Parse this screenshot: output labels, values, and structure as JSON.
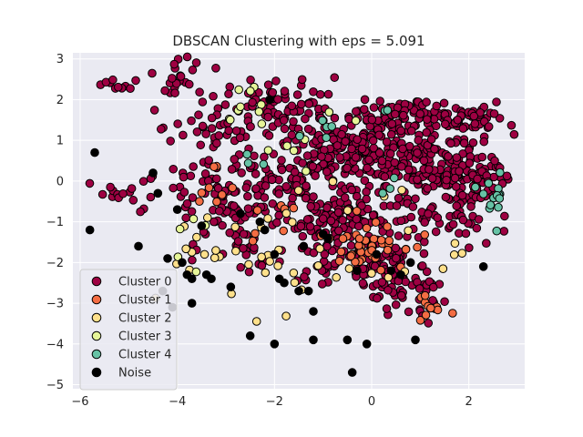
{
  "chart_data": {
    "type": "scatter",
    "title": "DBSCAN Clustering with eps = 5.091",
    "xlabel": "",
    "ylabel": "",
    "xlim": [
      -6.15,
      3.15
    ],
    "ylim": [
      -5.1,
      3.15
    ],
    "x_ticks": [
      -6,
      -4,
      -2,
      0,
      2
    ],
    "y_ticks": [
      -5,
      -4,
      -3,
      -2,
      -1,
      0,
      1,
      2,
      3
    ],
    "x_tick_labels": [
      "−6",
      "−4",
      "−2",
      "0",
      "2"
    ],
    "y_tick_labels": [
      "−5",
      "−4",
      "−3",
      "−2",
      "−1",
      "0",
      "1",
      "2",
      "3"
    ],
    "grid": true,
    "legend_position": "lower-left",
    "colors": {
      "background": "#eaeaf2",
      "grid": "#ffffff",
      "marker_edge": "#000000",
      "Cluster 0": "#9e0142",
      "Cluster 1": "#f46d43",
      "Cluster 2": "#fee08b",
      "Cluster 3": "#e6f598",
      "Cluster 4": "#66c2a5",
      "Noise": "#000000"
    },
    "series": [
      {
        "name": "Cluster 0",
        "color": "#9e0142",
        "clusters": [
          {
            "cx": 0.9,
            "cy": 1.6,
            "sx": 0.6,
            "sy": 0.25,
            "n": 90
          },
          {
            "cx": 1.9,
            "cy": 1.45,
            "sx": 0.4,
            "sy": 0.15,
            "n": 40
          },
          {
            "cx": 0.6,
            "cy": 0.5,
            "sx": 0.7,
            "sy": 0.45,
            "n": 140
          },
          {
            "cx": 1.7,
            "cy": 0.2,
            "sx": 0.5,
            "sy": 0.4,
            "n": 90
          },
          {
            "cx": 2.3,
            "cy": -0.1,
            "sx": 0.25,
            "sy": 0.3,
            "n": 30
          },
          {
            "cx": -0.6,
            "cy": 0.9,
            "sx": 0.6,
            "sy": 0.45,
            "n": 110
          },
          {
            "cx": -1.7,
            "cy": 1.8,
            "sx": 0.7,
            "sy": 0.35,
            "n": 70
          },
          {
            "cx": -1.9,
            "cy": 0.1,
            "sx": 0.8,
            "sy": 0.6,
            "n": 110
          },
          {
            "cx": -3.1,
            "cy": -0.5,
            "sx": 0.6,
            "sy": 0.45,
            "n": 60
          },
          {
            "cx": -3.3,
            "cy": 1.4,
            "sx": 0.5,
            "sy": 0.6,
            "n": 40
          },
          {
            "cx": -4.0,
            "cy": 2.5,
            "sx": 0.2,
            "sy": 0.2,
            "n": 18
          },
          {
            "cx": -5.3,
            "cy": 2.45,
            "sx": 0.2,
            "sy": 0.1,
            "n": 10
          },
          {
            "cx": -5.1,
            "cy": -0.2,
            "sx": 0.35,
            "sy": 0.2,
            "n": 14
          },
          {
            "cx": -0.6,
            "cy": -1.0,
            "sx": 0.6,
            "sy": 0.4,
            "n": 110
          },
          {
            "cx": 0.2,
            "cy": -2.0,
            "sx": 0.4,
            "sy": 0.3,
            "n": 70
          },
          {
            "cx": 0.7,
            "cy": -2.8,
            "sx": 0.5,
            "sy": 0.35,
            "n": 45
          },
          {
            "cx": 1.6,
            "cy": -1.0,
            "sx": 0.5,
            "sy": 0.35,
            "n": 40
          },
          {
            "cx": -1.1,
            "cy": -2.0,
            "sx": 0.3,
            "sy": 0.3,
            "n": 25
          },
          {
            "cx": -2.6,
            "cy": -1.6,
            "sx": 0.4,
            "sy": 0.3,
            "n": 25
          }
        ]
      },
      {
        "name": "Cluster 1",
        "color": "#f46d43",
        "clusters": [
          {
            "cx": -0.1,
            "cy": -1.5,
            "sx": 0.4,
            "sy": 0.3,
            "n": 40
          },
          {
            "cx": 1.1,
            "cy": -3.1,
            "sx": 0.25,
            "sy": 0.15,
            "n": 10
          },
          {
            "cx": -2.0,
            "cy": -1.0,
            "sx": 0.3,
            "sy": 0.2,
            "n": 8
          },
          {
            "cx": -3.2,
            "cy": -0.2,
            "sx": 0.3,
            "sy": 0.3,
            "n": 8
          }
        ]
      },
      {
        "name": "Cluster 2",
        "color": "#fee08b",
        "clusters": [
          {
            "cx": -1.5,
            "cy": -1.9,
            "sx": 0.9,
            "sy": 0.8,
            "n": 30
          },
          {
            "cx": -3.4,
            "cy": -1.5,
            "sx": 0.5,
            "sy": 0.8,
            "n": 12
          },
          {
            "cx": 1.4,
            "cy": -1.8,
            "sx": 0.4,
            "sy": 0.3,
            "n": 6
          }
        ]
      },
      {
        "name": "Cluster 3",
        "color": "#e6f598",
        "clusters": [
          {
            "cx": -2.5,
            "cy": 1.8,
            "sx": 0.3,
            "sy": 0.3,
            "n": 10
          },
          {
            "cx": -1.5,
            "cy": 0.8,
            "sx": 0.5,
            "sy": 0.5,
            "n": 8
          },
          {
            "cx": -3.6,
            "cy": -1.3,
            "sx": 0.3,
            "sy": 0.4,
            "n": 5
          }
        ]
      },
      {
        "name": "Cluster 4",
        "color": "#66c2a5",
        "clusters": [
          {
            "cx": 2.5,
            "cy": -0.4,
            "sx": 0.15,
            "sy": 0.35,
            "n": 14
          },
          {
            "cx": -1.0,
            "cy": 1.4,
            "sx": 0.2,
            "sy": 0.15,
            "n": 5
          },
          {
            "cx": 0.3,
            "cy": 1.7,
            "sx": 0.1,
            "sy": 0.1,
            "n": 2
          },
          {
            "cx": -2.4,
            "cy": 0.5,
            "sx": 0.3,
            "sy": 0.1,
            "n": 3
          },
          {
            "cx": 0.3,
            "cy": -0.2,
            "sx": 0.2,
            "sy": 0.1,
            "n": 3
          }
        ]
      },
      {
        "name": "Noise",
        "color": "#000000",
        "points": [
          [
            -5.7,
            0.7
          ],
          [
            -5.8,
            -1.2
          ],
          [
            -4.8,
            -1.6
          ],
          [
            -4.5,
            0.2
          ],
          [
            -4.4,
            -0.3
          ],
          [
            -4.2,
            -1.9
          ],
          [
            -4.0,
            -0.7
          ],
          [
            -3.9,
            -2.0
          ],
          [
            -3.8,
            -2.3
          ],
          [
            -3.7,
            -2.4
          ],
          [
            -3.7,
            -3.0
          ],
          [
            -3.5,
            -1.1
          ],
          [
            -3.4,
            -2.3
          ],
          [
            -3.3,
            -2.4
          ],
          [
            -2.9,
            -2.6
          ],
          [
            -2.7,
            -0.8
          ],
          [
            -2.5,
            -3.8
          ],
          [
            -2.3,
            -1.0
          ],
          [
            -2.2,
            -1.2
          ],
          [
            -2.1,
            2.0
          ],
          [
            -2.0,
            -1.8
          ],
          [
            -1.9,
            -2.4
          ],
          [
            -1.8,
            -2.5
          ],
          [
            -1.5,
            -2.7
          ],
          [
            -1.4,
            -1.6
          ],
          [
            -1.3,
            -2.7
          ],
          [
            -1.2,
            -3.2
          ],
          [
            -1.0,
            -1.3
          ],
          [
            -0.9,
            -1.4
          ],
          [
            -0.5,
            -3.9
          ],
          [
            -0.4,
            -4.7
          ],
          [
            -0.3,
            -2.2
          ],
          [
            -0.1,
            -4.0
          ],
          [
            0.1,
            -1.8
          ],
          [
            0.4,
            -2.2
          ],
          [
            0.6,
            -2.3
          ],
          [
            0.8,
            -2.0
          ],
          [
            0.9,
            -3.9
          ],
          [
            2.3,
            -2.1
          ],
          [
            -4.3,
            -2.7
          ],
          [
            -4.1,
            -3.1
          ],
          [
            -2.0,
            -4.0
          ],
          [
            -1.2,
            -3.9
          ]
        ]
      }
    ]
  }
}
